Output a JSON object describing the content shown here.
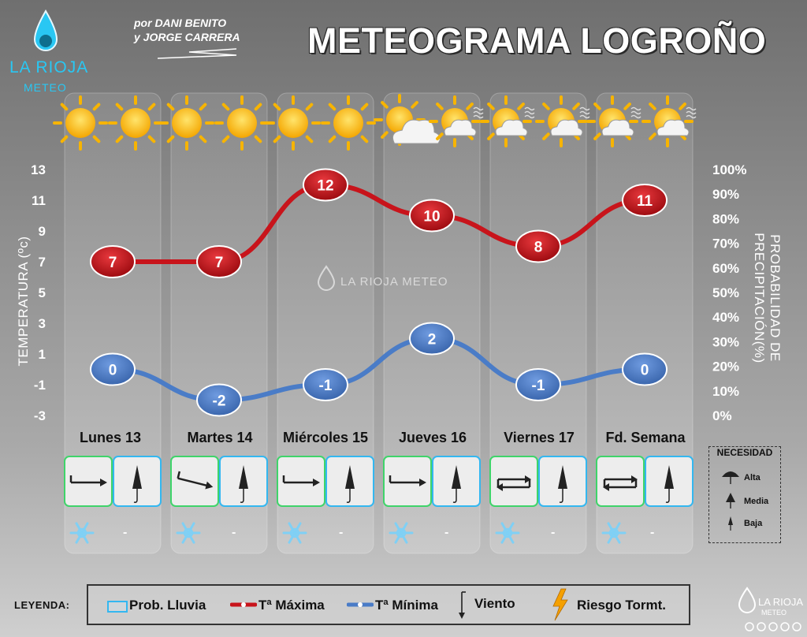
{
  "header": {
    "brand": "LA RIOJA",
    "brand_sub": "METEO",
    "authors_line1": "por DANI BENITO",
    "authors_line2": "y JORGE CARRERA",
    "title": "METEOGRAMA LOGROÑO"
  },
  "watermark": "LA RIOJA METEO",
  "axes": {
    "left_label": "TEMPERATURA (ºc)",
    "right_label": "PROBABILIDAD DE PRECIPITACIÓN(%)"
  },
  "chart_data": {
    "type": "line",
    "categories": [
      "Lunes 13",
      "Martes 14",
      "Miércoles 15",
      "Jueves 16",
      "Viernes 17",
      "Fd. Semana"
    ],
    "series": [
      {
        "name": "Tª Máxima",
        "values": [
          7,
          7,
          12,
          10,
          8,
          11
        ],
        "color": "#c8141b"
      },
      {
        "name": "Tª Mínima",
        "values": [
          0,
          -2,
          -1,
          2,
          -1,
          0
        ],
        "color": "#4a7cc7"
      }
    ],
    "precipitation_probability": [
      0,
      0,
      0,
      0,
      0,
      0
    ],
    "ylabel": "TEMPERATURA (ºc)",
    "ylim": [
      -3,
      13
    ],
    "y_ticks": [
      13,
      11,
      9,
      7,
      5,
      3,
      1,
      -1,
      -3
    ],
    "y2label": "PROBABILIDAD DE PRECIPITACIÓN(%)",
    "y2lim": [
      0,
      100
    ],
    "y2_ticks": [
      "100%",
      "90%",
      "80%",
      "70%",
      "60%",
      "50%",
      "40%",
      "30%",
      "20%",
      "10%",
      "0%"
    ],
    "weather_icons": [
      [
        "sun",
        "sun"
      ],
      [
        "sun",
        "sun"
      ],
      [
        "sun",
        "sun"
      ],
      [
        "sun-cloud",
        "sun-cloud-fog"
      ],
      [
        "sun-cloud-fog",
        "sun-cloud-fog"
      ],
      [
        "sun-cloud-fog",
        "sun-cloud-fog"
      ]
    ],
    "wind": [
      "east",
      "south-east",
      "east",
      "east",
      "variable",
      "variable"
    ],
    "umbrella_need": [
      "media",
      "media",
      "media",
      "media",
      "media",
      "media"
    ],
    "frost_icon": [
      true,
      true,
      true,
      true,
      true,
      true
    ],
    "storm_risk": [
      "-",
      "-",
      "-",
      "-",
      "-",
      "-"
    ]
  },
  "need_legend": {
    "title": "NECESIDAD",
    "items": [
      "Alta",
      "Media",
      "Baja"
    ]
  },
  "legend": {
    "title": "LEYENDA:",
    "items": [
      "Prob. Lluvia",
      "Tª Máxima",
      "Tª Mínima",
      "Viento",
      "Riesgo Tormt."
    ]
  },
  "footer": {
    "brand": "LA RIOJA",
    "brand_sub": "METEO"
  },
  "colors": {
    "max": "#c8141b",
    "min": "#4a7cc7",
    "wind_border": "#3fd46a",
    "rain_border": "#33b7f0",
    "sun": "#f7b400",
    "frost": "#7fd0f5",
    "storm": "#f5a000"
  }
}
